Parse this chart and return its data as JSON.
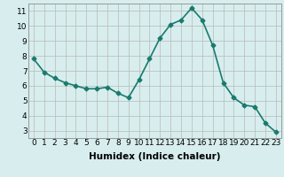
{
  "x": [
    0,
    1,
    2,
    3,
    4,
    5,
    6,
    7,
    8,
    9,
    10,
    11,
    12,
    13,
    14,
    15,
    16,
    17,
    18,
    19,
    20,
    21,
    22,
    23
  ],
  "y": [
    7.8,
    6.9,
    6.5,
    6.2,
    6.0,
    5.8,
    5.8,
    5.9,
    5.5,
    5.2,
    6.4,
    7.8,
    9.2,
    10.1,
    10.4,
    11.2,
    10.4,
    8.7,
    6.2,
    5.2,
    4.7,
    4.6,
    3.5,
    2.9
  ],
  "line_color": "#1a7a6e",
  "marker": "D",
  "marker_size": 2.5,
  "bg_color": "#d8eeee",
  "grid_color": "#b8b8b8",
  "xlabel": "Humidex (Indice chaleur)",
  "xlim": [
    -0.5,
    23.5
  ],
  "ylim": [
    2.5,
    11.5
  ],
  "yticks": [
    3,
    4,
    5,
    6,
    7,
    8,
    9,
    10,
    11
  ],
  "xticks": [
    0,
    1,
    2,
    3,
    4,
    5,
    6,
    7,
    8,
    9,
    10,
    11,
    12,
    13,
    14,
    15,
    16,
    17,
    18,
    19,
    20,
    21,
    22,
    23
  ],
  "label_fontsize": 7.5,
  "tick_fontsize": 6.5,
  "line_width": 1.2
}
